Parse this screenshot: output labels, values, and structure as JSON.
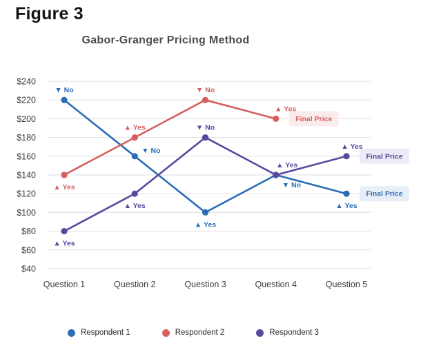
{
  "figure": {
    "label": "Figure 3"
  },
  "chart_data": {
    "type": "line",
    "title": "Gabor-Granger Pricing Method",
    "categories": [
      "Question 1",
      "Question 2",
      "Question 3",
      "Question 4",
      "Question 5"
    ],
    "y_axis": {
      "min": 40,
      "max": 240,
      "step": 20,
      "prefix": "$"
    },
    "grid": "horizontal",
    "legend_position": "bottom",
    "markers": {
      "Yes": "▲",
      "No": "▼"
    },
    "final_price_label": "Final Price",
    "colors": {
      "respondent1": "#2a6db5",
      "respondent2": "#d75f5f",
      "respondent3": "#5a489e",
      "gridline": "#e4e4e6",
      "axis_text": "#3a3a3a"
    },
    "series": [
      {
        "name": "Respondent 1",
        "color": "#2a6db5",
        "badge_bg": "#e8eef8",
        "points": [
          {
            "category": "Question 1",
            "value": 220,
            "response": "No",
            "label_pos": "above"
          },
          {
            "category": "Question 2",
            "value": 160,
            "response": "No",
            "label_pos": "above-right"
          },
          {
            "category": "Question 3",
            "value": 100,
            "response": "Yes",
            "label_pos": "below"
          },
          {
            "category": "Question 4",
            "value": 140,
            "response": "No",
            "label_pos": "below-right"
          },
          {
            "category": "Question 5",
            "value": 120,
            "response": "Yes",
            "label_pos": "below",
            "final_price": true
          }
        ]
      },
      {
        "name": "Respondent 2",
        "color": "#d75f5f",
        "badge_bg": "#fbecec",
        "points": [
          {
            "category": "Question 1",
            "value": 140,
            "response": "Yes",
            "label_pos": "below"
          },
          {
            "category": "Question 2",
            "value": 180,
            "response": "Yes",
            "label_pos": "above"
          },
          {
            "category": "Question 3",
            "value": 220,
            "response": "No",
            "label_pos": "above"
          },
          {
            "category": "Question 4",
            "value": 200,
            "response": "Yes",
            "label_pos": "above",
            "dx": 14,
            "final_price": true
          }
        ]
      },
      {
        "name": "Respondent 3",
        "color": "#5a489e",
        "badge_bg": "#edebf6",
        "points": [
          {
            "category": "Question 1",
            "value": 80,
            "response": "Yes",
            "label_pos": "below"
          },
          {
            "category": "Question 2",
            "value": 120,
            "response": "Yes",
            "label_pos": "below"
          },
          {
            "category": "Question 3",
            "value": 180,
            "response": "No",
            "label_pos": "above"
          },
          {
            "category": "Question 4",
            "value": 140,
            "response": "Yes",
            "label_pos": "above",
            "dx": 16
          },
          {
            "category": "Question 5",
            "value": 160,
            "response": "Yes",
            "label_pos": "above",
            "dx": 8,
            "final_price": true
          }
        ]
      }
    ]
  }
}
